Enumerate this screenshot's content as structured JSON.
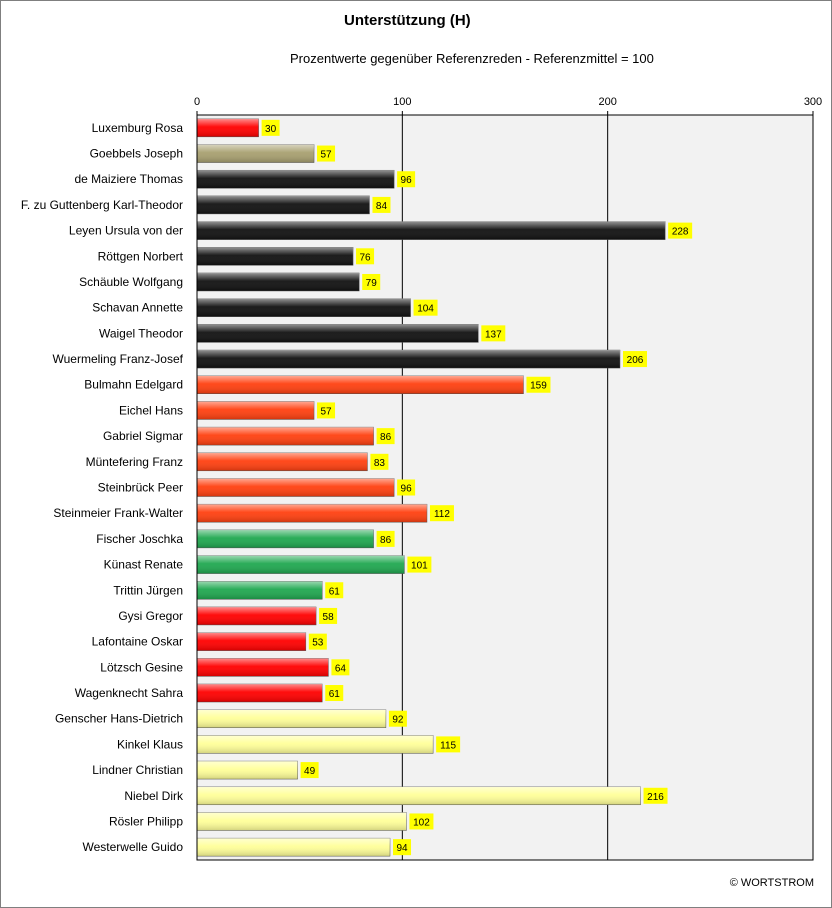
{
  "chart_data": {
    "type": "bar",
    "orientation": "horizontal",
    "title": "Unterstützung (H)",
    "subtitle": "Prozentwerte  gegenüber Referenzreden - Referenzmittel = 100",
    "xlim": [
      0,
      300
    ],
    "xticks": [
      0,
      100,
      200,
      300
    ],
    "grid": true,
    "categories": [
      "Luxemburg Rosa",
      "Goebbels Joseph",
      "de Maiziere Thomas",
      "F. zu Guttenberg Karl-Theodor",
      "Leyen Ursula von der",
      "Röttgen Norbert",
      "Schäuble Wolfgang",
      "Schavan Annette",
      "Waigel Theodor",
      "Wuermeling Franz-Josef",
      "Bulmahn Edelgard",
      "Eichel Hans",
      "Gabriel Sigmar",
      "Müntefering Franz",
      "Steinbrück Peer",
      "Steinmeier Frank-Walter",
      "Fischer Joschka",
      "Künast Renate",
      "Trittin Jürgen",
      "Gysi Gregor",
      "Lafontaine Oskar",
      "Lötzsch Gesine",
      "Wagenknecht Sahra",
      "Genscher Hans-Dietrich",
      "Kinkel Klaus",
      "Lindner Christian",
      "Niebel Dirk",
      "Rösler Philipp",
      "Westerwelle Guido"
    ],
    "values": [
      30,
      57,
      96,
      84,
      228,
      76,
      79,
      104,
      137,
      206,
      159,
      57,
      86,
      83,
      96,
      112,
      86,
      101,
      61,
      58,
      53,
      64,
      61,
      92,
      115,
      49,
      216,
      102,
      94
    ],
    "bar_colors": [
      "#ff0000",
      "#a8a070",
      "#111111",
      "#111111",
      "#111111",
      "#111111",
      "#111111",
      "#111111",
      "#111111",
      "#111111",
      "#ff4010",
      "#ff4010",
      "#ff4010",
      "#ff4010",
      "#ff4010",
      "#ff4010",
      "#20a850",
      "#20a850",
      "#20a850",
      "#ff0000",
      "#ff0000",
      "#ff0000",
      "#ff0000",
      "#ffff99",
      "#ffff99",
      "#ffff99",
      "#ffff99",
      "#ffff99",
      "#ffff99"
    ],
    "label_background": "#ffff00",
    "plot_background": "#f2f2f2"
  },
  "footer": {
    "copyright": "© WORTSTROM"
  }
}
